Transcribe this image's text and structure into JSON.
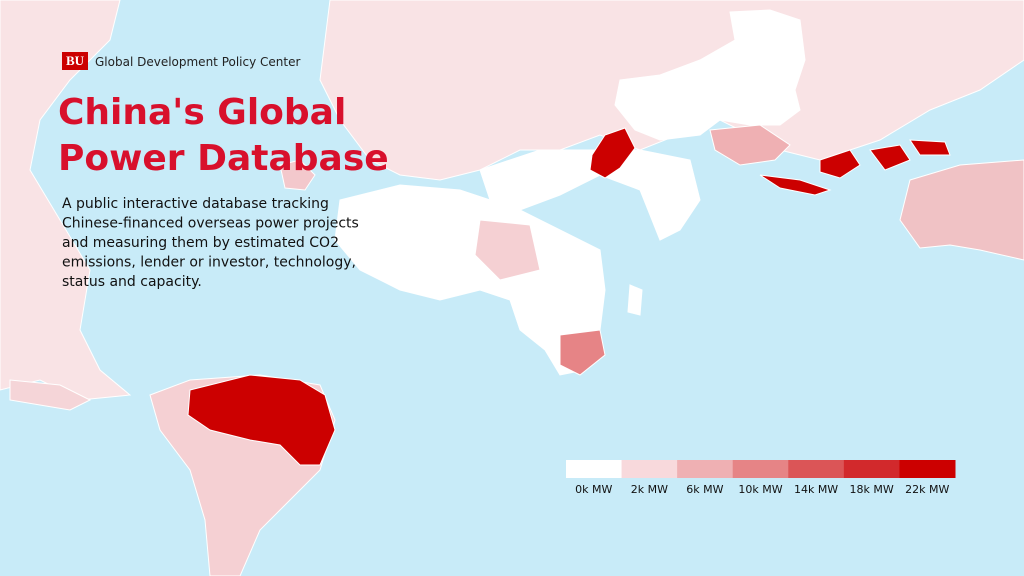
{
  "header": {
    "logo": "BU",
    "org": "Global Development Policy Center"
  },
  "title": [
    "China's Global",
    "Power Database"
  ],
  "description": [
    "A public interactive database tracking",
    "Chinese-financed overseas power projects",
    "and measuring them by estimated CO2",
    "emissions, lender or investor, technology,",
    "status and capacity."
  ],
  "legend": {
    "items": [
      {
        "label": "0k MW",
        "color": "#ffffff"
      },
      {
        "label": "2k MW",
        "color": "#f8d9dc"
      },
      {
        "label": "6k MW",
        "color": "#efb0b3"
      },
      {
        "label": "10k MW",
        "color": "#e68486"
      },
      {
        "label": "14k MW",
        "color": "#db5557"
      },
      {
        "label": "18k MW",
        "color": "#d2292c"
      },
      {
        "label": "22k MW",
        "color": "#cc0000"
      }
    ]
  }
}
